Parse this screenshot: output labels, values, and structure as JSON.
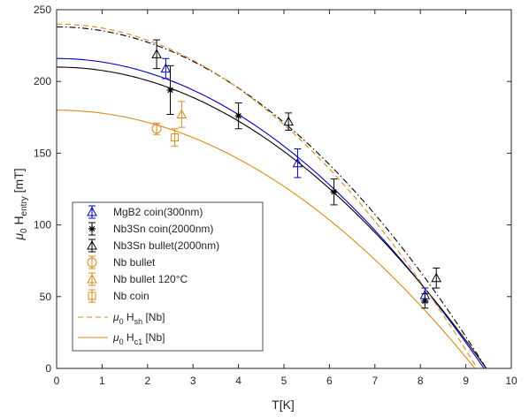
{
  "chart_data": {
    "type": "scatter",
    "xlabel": "T[K]",
    "ylabel": {
      "main": "μ",
      "sub0": "0",
      "mid": " H",
      "sub1": "entry",
      "unit": " [mT]"
    },
    "xlim": [
      0,
      10
    ],
    "ylim": [
      0,
      250
    ],
    "xticks": [
      0,
      1,
      2,
      3,
      4,
      5,
      6,
      7,
      8,
      9,
      10
    ],
    "yticks": [
      0,
      50,
      100,
      150,
      200,
      250
    ],
    "grid": false,
    "legend_position": "bottom-left",
    "curves": [
      {
        "id": "mgb2-fit",
        "color": "#0000c0",
        "dash": "solid",
        "h0": 216,
        "tc": 9.4
      },
      {
        "id": "nb3sn-coin-fit",
        "color": "#000000",
        "dash": "solid",
        "h0": 210,
        "tc": 9.45
      },
      {
        "id": "nb3sn-bullet-fit",
        "color": "#000000",
        "dash": "dashdot",
        "h0": 238,
        "tc": 9.45
      },
      {
        "id": "nb-hsh",
        "color": "#d98a1c",
        "dash": "dashed",
        "h0": 240,
        "tc": 9.25
      },
      {
        "id": "nb-hc1",
        "color": "#d98a1c",
        "dash": "solid",
        "h0": 180,
        "tc": 9.2
      }
    ],
    "series": [
      {
        "name": "MgB2 coin(300nm)",
        "color": "#0000c0",
        "marker": "triangle",
        "points": [
          {
            "x": 2.4,
            "y": 209,
            "err": 7
          },
          {
            "x": 5.3,
            "y": 143,
            "err": 10
          },
          {
            "x": 8.1,
            "y": 51,
            "err": 5
          }
        ]
      },
      {
        "name": "Nb3Sn coin(2000nm)",
        "color": "#000000",
        "marker": "asterisk",
        "points": [
          {
            "x": 2.5,
            "y": 194,
            "err": 17
          },
          {
            "x": 4.0,
            "y": 176,
            "err": 9
          },
          {
            "x": 6.1,
            "y": 123,
            "err": 9
          },
          {
            "x": 8.1,
            "y": 47,
            "err": 5
          }
        ]
      },
      {
        "name": "Nb3Sn bullet(2000nm)",
        "color": "#000000",
        "marker": "triangle",
        "points": [
          {
            "x": 2.2,
            "y": 219,
            "err": 10
          },
          {
            "x": 5.1,
            "y": 172,
            "err": 6
          },
          {
            "x": 8.35,
            "y": 63,
            "err": 7
          }
        ]
      },
      {
        "name": "Nb bullet",
        "color": "#d98a1c",
        "marker": "circle",
        "points": [
          {
            "x": 2.2,
            "y": 167,
            "err": 4
          }
        ]
      },
      {
        "name": "Nb bullet 120°C",
        "color": "#d98a1c",
        "marker": "triangle",
        "points": [
          {
            "x": 2.75,
            "y": 177,
            "err": 9
          }
        ]
      },
      {
        "name": "Nb coin",
        "color": "#d98a1c",
        "marker": "square",
        "points": [
          {
            "x": 2.6,
            "y": 161,
            "err": 6
          }
        ]
      }
    ],
    "legend_lines": [
      {
        "prefix": "μ",
        "sub0": "0",
        "mid": " H",
        "sub1": "sh",
        "suffix": " [Nb]",
        "color": "#d98a1c",
        "dash": "dashed"
      },
      {
        "prefix": "μ",
        "sub0": "0",
        "mid": " H",
        "sub1": "c1",
        "suffix": " [Nb]",
        "color": "#d98a1c",
        "dash": "solid"
      }
    ]
  }
}
